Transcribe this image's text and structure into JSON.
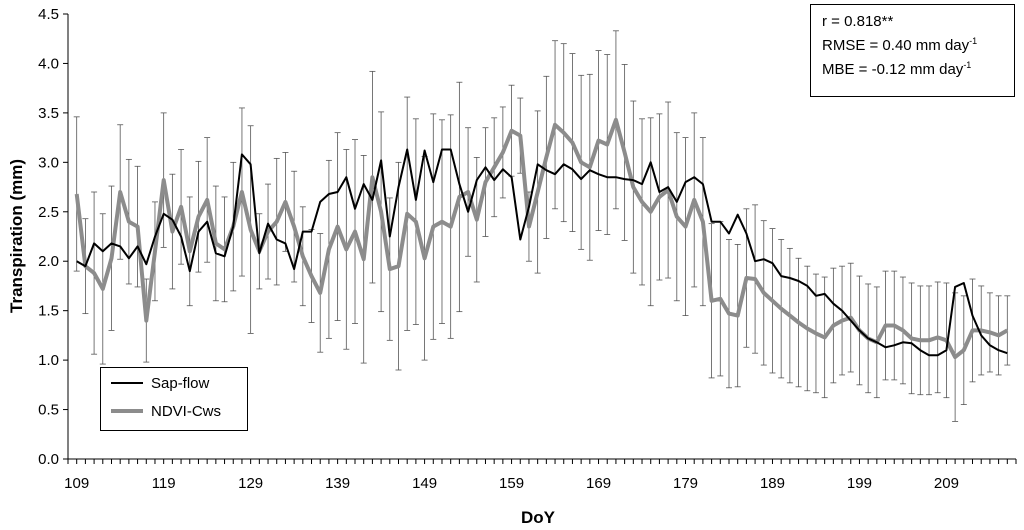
{
  "chart_data": {
    "type": "line",
    "xlabel": "DoY",
    "ylabel": "Transpiration (mm)",
    "xlim": [
      108,
      217
    ],
    "ylim": [
      0,
      4.5
    ],
    "xticks": [
      109,
      119,
      129,
      139,
      149,
      159,
      169,
      179,
      189,
      199,
      209
    ],
    "yticks": [
      "0.0",
      "0.5",
      "1.0",
      "1.5",
      "2.0",
      "2.5",
      "3.0",
      "3.5",
      "4.0",
      "4.5"
    ],
    "legend_position": "bottom-left",
    "annotation": {
      "r_line": "r = 0.818**",
      "rmse_prefix": "RMSE = 0.40 mm day",
      "mbe_prefix": "MBE = -0.12 mm day",
      "exponent": "-1"
    },
    "x": [
      109,
      110,
      111,
      112,
      113,
      114,
      115,
      116,
      117,
      118,
      119,
      120,
      121,
      122,
      123,
      124,
      125,
      126,
      127,
      128,
      129,
      130,
      131,
      132,
      133,
      134,
      135,
      136,
      137,
      138,
      139,
      140,
      141,
      142,
      143,
      144,
      145,
      146,
      147,
      148,
      149,
      150,
      151,
      152,
      153,
      154,
      155,
      156,
      157,
      158,
      159,
      160,
      161,
      162,
      163,
      164,
      165,
      166,
      167,
      168,
      169,
      170,
      171,
      172,
      173,
      174,
      175,
      176,
      177,
      178,
      179,
      180,
      181,
      182,
      183,
      184,
      185,
      186,
      187,
      188,
      189,
      190,
      191,
      192,
      193,
      194,
      195,
      196,
      197,
      198,
      199,
      200,
      201,
      202,
      203,
      204,
      205,
      206,
      207,
      208,
      209,
      210,
      211,
      212,
      213,
      214,
      215,
      216
    ],
    "series": [
      {
        "name": "Sap-flow",
        "color": "#000000",
        "values": [
          2.0,
          1.95,
          2.18,
          2.1,
          2.18,
          2.15,
          2.03,
          2.15,
          1.97,
          2.25,
          2.48,
          2.42,
          2.25,
          1.9,
          2.3,
          2.4,
          2.08,
          2.05,
          2.35,
          3.08,
          2.98,
          2.08,
          2.38,
          2.22,
          2.18,
          1.92,
          2.3,
          2.3,
          2.6,
          2.68,
          2.7,
          2.85,
          2.53,
          2.78,
          2.62,
          3.02,
          2.25,
          2.75,
          3.13,
          2.62,
          3.12,
          2.8,
          3.13,
          3.13,
          2.78,
          2.5,
          2.82,
          2.95,
          2.82,
          2.93,
          2.85,
          2.22,
          2.55,
          2.98,
          2.92,
          2.88,
          2.98,
          2.93,
          2.83,
          2.92,
          2.88,
          2.85,
          2.85,
          2.83,
          2.82,
          2.78,
          3.0,
          2.7,
          2.75,
          2.6,
          2.8,
          2.85,
          2.78,
          2.4,
          2.4,
          2.28,
          2.47,
          2.28,
          2.0,
          2.02,
          1.98,
          1.85,
          1.83,
          1.8,
          1.75,
          1.65,
          1.67,
          1.57,
          1.5,
          1.4,
          1.3,
          1.22,
          1.18,
          1.13,
          1.15,
          1.18,
          1.17,
          1.1,
          1.05,
          1.05,
          1.1,
          1.74,
          1.78,
          1.45,
          1.25,
          1.15,
          1.1,
          1.07
        ]
      },
      {
        "name": "NDVI-Cws",
        "color": "#8c8c8c",
        "values": [
          2.68,
          1.95,
          1.88,
          1.72,
          2.03,
          2.7,
          2.4,
          2.35,
          1.4,
          2.1,
          2.82,
          2.3,
          2.55,
          2.1,
          2.45,
          2.62,
          2.18,
          2.12,
          2.35,
          2.7,
          2.32,
          2.1,
          2.3,
          2.4,
          2.6,
          2.35,
          2.05,
          1.85,
          1.68,
          2.12,
          2.35,
          2.12,
          2.3,
          2.02,
          2.85,
          2.5,
          1.92,
          1.95,
          2.48,
          2.4,
          2.03,
          2.35,
          2.4,
          2.35,
          2.65,
          2.7,
          2.42,
          2.8,
          2.95,
          3.1,
          3.32,
          3.27,
          2.35,
          2.7,
          3.05,
          3.38,
          3.3,
          3.2,
          3.0,
          2.95,
          3.22,
          3.18,
          3.43,
          3.1,
          2.75,
          2.6,
          2.5,
          2.65,
          2.72,
          2.45,
          2.35,
          2.62,
          2.4,
          1.6,
          1.62,
          1.47,
          1.45,
          1.83,
          1.82,
          1.68,
          1.6,
          1.52,
          1.45,
          1.38,
          1.32,
          1.27,
          1.23,
          1.35,
          1.4,
          1.43,
          1.3,
          1.22,
          1.18,
          1.35,
          1.35,
          1.3,
          1.22,
          1.2,
          1.2,
          1.23,
          1.2,
          1.03,
          1.1,
          1.3,
          1.3,
          1.28,
          1.25,
          1.3
        ]
      }
    ],
    "error_bar_series": "NDVI-Cws",
    "error_bars": [
      0.78,
      0.48,
      0.82,
      0.76,
      0.73,
      0.68,
      0.63,
      0.61,
      0.42,
      0.5,
      0.68,
      0.58,
      0.58,
      0.55,
      0.56,
      0.63,
      0.58,
      0.53,
      0.65,
      0.85,
      1.05,
      0.38,
      0.48,
      0.64,
      0.5,
      0.56,
      0.5,
      0.47,
      0.6,
      0.9,
      0.95,
      1.01,
      0.93,
      1.05,
      1.07,
      1.01,
      0.72,
      1.05,
      1.18,
      1.04,
      1.03,
      1.14,
      1.03,
      1.13,
      1.16,
      0.65,
      0.63,
      0.55,
      0.5,
      0.46,
      0.46,
      0.38,
      0.35,
      0.82,
      0.82,
      0.85,
      0.9,
      0.9,
      0.88,
      0.94,
      0.91,
      0.91,
      0.9,
      0.89,
      0.87,
      0.84,
      0.95,
      0.84,
      0.89,
      0.85,
      0.9,
      0.88,
      0.85,
      0.78,
      0.78,
      0.75,
      0.72,
      0.7,
      0.75,
      0.73,
      0.73,
      0.7,
      0.68,
      0.65,
      0.63,
      0.6,
      0.61,
      0.58,
      0.55,
      0.55,
      0.55,
      0.55,
      0.56,
      0.55,
      0.55,
      0.54,
      0.56,
      0.55,
      0.55,
      0.56,
      0.58,
      0.65,
      0.55,
      0.52,
      0.45,
      0.4,
      0.4,
      0.35
    ]
  }
}
